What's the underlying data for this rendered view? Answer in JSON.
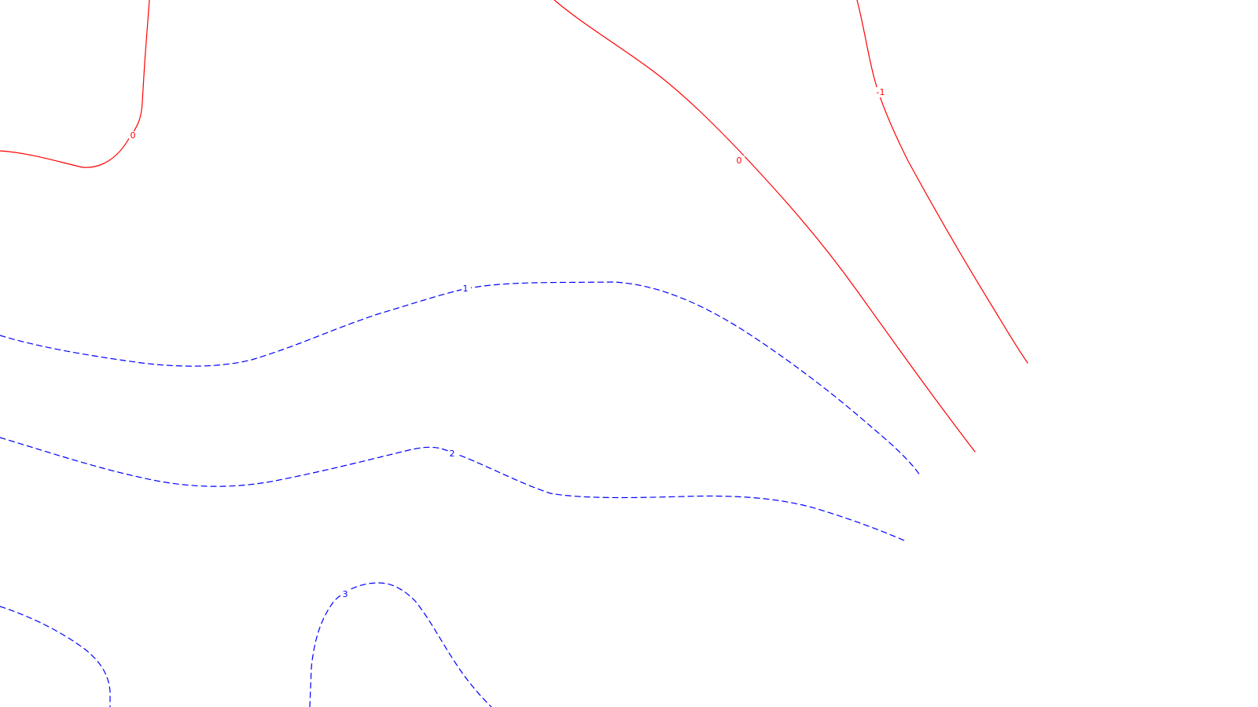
{
  "map": {
    "colors": {
      "positive": "#ff0000",
      "negative": "#0000ff",
      "background": "#ffffff"
    },
    "contours": [
      {
        "id": "top-left-zero",
        "label": "0",
        "style": "solid"
      },
      {
        "id": "top-center-zero",
        "label": "0",
        "style": "solid"
      },
      {
        "id": "top-right-minus-one",
        "label": "-1",
        "style": "solid"
      },
      {
        "id": "middle-one",
        "label": "1",
        "style": "dashed"
      },
      {
        "id": "middle-two",
        "label": "2",
        "style": "dashed"
      },
      {
        "id": "bottom-three",
        "label": "3",
        "style": "dashed"
      },
      {
        "id": "bottom-left-segment",
        "label": "",
        "style": "dashed"
      }
    ]
  }
}
